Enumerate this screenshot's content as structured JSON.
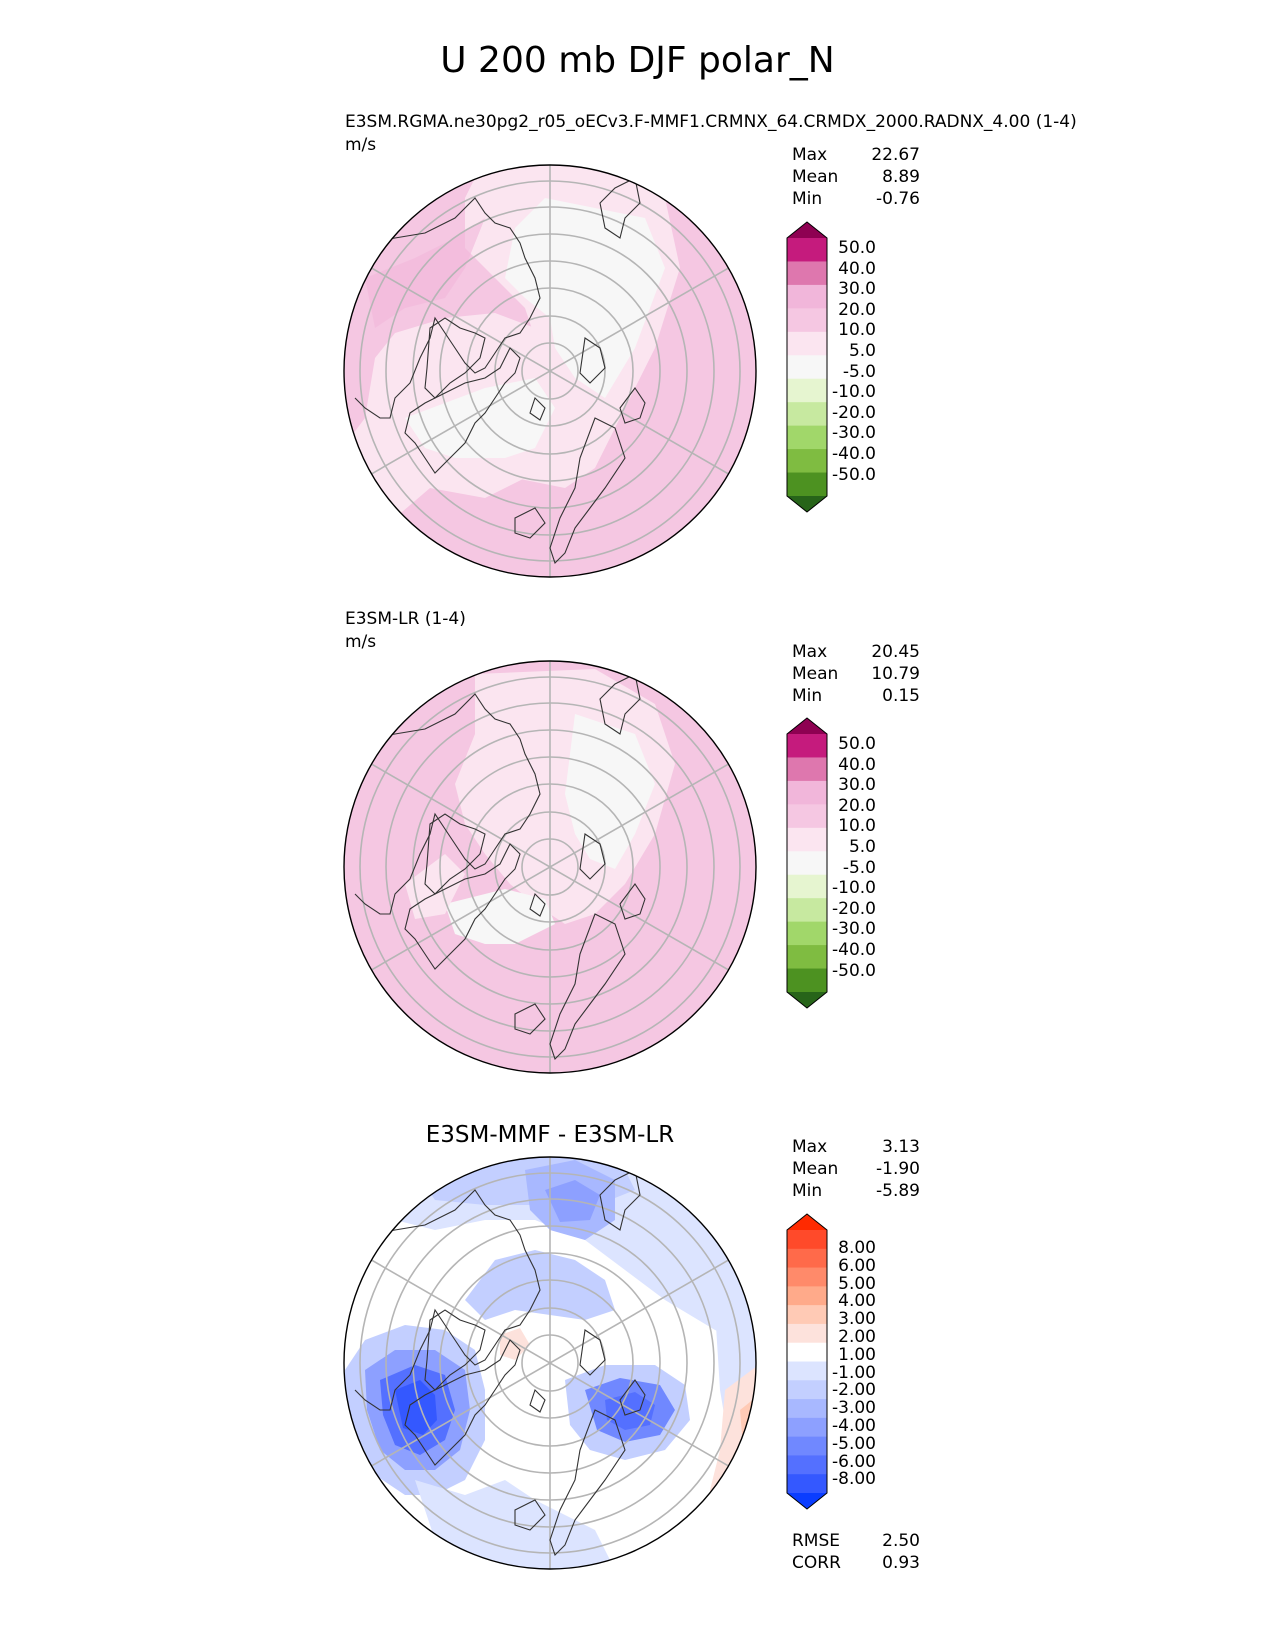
{
  "page_title": "U 200 mb DJF polar_N",
  "colors": {
    "model_levels": [
      "#8e0152",
      "#c51b7d",
      "#de77ae",
      "#f1b6da",
      "#f5c7e2",
      "#fbe5f0",
      "#f7f7f7",
      "#e6f5d0",
      "#c7e9a0",
      "#a1d76a",
      "#7fbc41",
      "#4d9221",
      "#276419"
    ],
    "diff_levels": [
      "#ff2a00",
      "#ff4a2a",
      "#ff6a4a",
      "#ff8a6a",
      "#ffaa8a",
      "#ffcab5",
      "#fde2dc",
      "#ffffff",
      "#dce4ff",
      "#c3cfff",
      "#a8b8ff",
      "#8da0ff",
      "#7088ff",
      "#5470ff",
      "#3458ff",
      "#0a3dff"
    ]
  },
  "chart_data": [
    {
      "type": "heatmap",
      "projection": "north-polar-stereographic",
      "title": "E3SM.RGMA.ne30pg2_r05_oECv3.F-MMF1.CRMNX_64.CRMDX_2000.RADNX_4.00 (1-4)",
      "units": "m/s",
      "stats": [
        {
          "label": "Max",
          "value": "22.67"
        },
        {
          "label": "Mean",
          "value": "8.89"
        },
        {
          "label": "Min",
          "value": "-0.76"
        }
      ],
      "colorbar_labels": [
        "50.0",
        "40.0",
        "30.0",
        "20.0",
        "10.0",
        "5.0",
        "-5.0",
        "-10.0",
        "-20.0",
        "-30.0",
        "-40.0",
        "-50.0"
      ]
    },
    {
      "type": "heatmap",
      "projection": "north-polar-stereographic",
      "title": "E3SM-LR (1-4)",
      "units": "m/s",
      "stats": [
        {
          "label": "Max",
          "value": "20.45"
        },
        {
          "label": "Mean",
          "value": "10.79"
        },
        {
          "label": "Min",
          "value": "0.15"
        }
      ],
      "colorbar_labels": [
        "50.0",
        "40.0",
        "30.0",
        "20.0",
        "10.0",
        "5.0",
        "-5.0",
        "-10.0",
        "-20.0",
        "-30.0",
        "-40.0",
        "-50.0"
      ]
    },
    {
      "type": "heatmap",
      "projection": "north-polar-stereographic",
      "title": "E3SM-MMF - E3SM-LR",
      "stats": [
        {
          "label": "Max",
          "value": "3.13"
        },
        {
          "label": "Mean",
          "value": "-1.90"
        },
        {
          "label": "Min",
          "value": "-5.89"
        }
      ],
      "colorbar_labels": [
        "8.00",
        "6.00",
        "5.00",
        "4.00",
        "3.00",
        "2.00",
        "1.00",
        "-1.00",
        "-2.00",
        "-3.00",
        "-4.00",
        "-5.00",
        "-6.00",
        "-8.00"
      ],
      "metrics": [
        {
          "label": "RMSE",
          "value": "2.50"
        },
        {
          "label": "CORR",
          "value": "0.93"
        }
      ]
    }
  ]
}
